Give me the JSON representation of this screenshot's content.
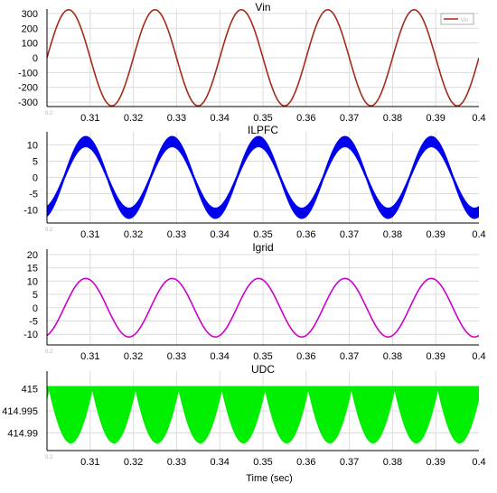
{
  "xlabel": "Time (sec)",
  "colors": {
    "vin": "#a52a1a",
    "ilpfc": "#0000ee",
    "igrid": "#cc00cc",
    "udc": "#00ee00",
    "grid": "#dcdcdc",
    "axis": "#000000",
    "watermark": "#a8c8ff"
  },
  "chart_data": [
    {
      "type": "line",
      "title": "Vin",
      "xlim": [
        0.3,
        0.4
      ],
      "ylim": [
        -330,
        330
      ],
      "xticks": [
        "0.31",
        "0.32",
        "0.33",
        "0.34",
        "0.35",
        "0.36",
        "0.37",
        "0.38",
        "0.39",
        "0.4"
      ],
      "xtick_values": [
        0.31,
        0.32,
        0.33,
        0.34,
        0.35,
        0.36,
        0.37,
        0.38,
        0.39,
        0.4
      ],
      "yticks": [
        "300",
        "200",
        "100",
        "0",
        "-100",
        "-200",
        "-300"
      ],
      "ytick_values": [
        300,
        200,
        100,
        0,
        -100,
        -200,
        -300
      ],
      "x_start_label": "0.2",
      "legend": "top-right",
      "series": [
        {
          "name": "Vin",
          "kind": "sine",
          "amplitude": 325,
          "frequency_hz": 50,
          "phase_rad": 0,
          "offset": 0,
          "band": 0
        }
      ]
    },
    {
      "type": "line",
      "title": "ILPFC",
      "xlim": [
        0.3,
        0.4
      ],
      "ylim": [
        -14,
        14
      ],
      "xticks": [
        "0.31",
        "0.32",
        "0.33",
        "0.34",
        "0.35",
        "0.36",
        "0.37",
        "0.38",
        "0.39",
        "0.4"
      ],
      "xtick_values": [
        0.31,
        0.32,
        0.33,
        0.34,
        0.35,
        0.36,
        0.37,
        0.38,
        0.39,
        0.4
      ],
      "yticks": [
        "10",
        "5",
        "0",
        "-5",
        "-10"
      ],
      "ytick_values": [
        10,
        5,
        0,
        -5,
        -10
      ],
      "x_start_label": "0.2",
      "series": [
        {
          "kind": "sine",
          "amplitude": 11,
          "frequency_hz": 50,
          "phase_rad": -1.25,
          "offset": 0,
          "band": 1.6
        }
      ]
    },
    {
      "type": "line",
      "title": "Igrid",
      "xlim": [
        0.3,
        0.4
      ],
      "ylim": [
        -14,
        22
      ],
      "xticks": [
        "0.31",
        "0.32",
        "0.33",
        "0.34",
        "0.35",
        "0.36",
        "0.37",
        "0.38",
        "0.39",
        "0.4"
      ],
      "xtick_values": [
        0.31,
        0.32,
        0.33,
        0.34,
        0.35,
        0.36,
        0.37,
        0.38,
        0.39,
        0.4
      ],
      "yticks": [
        "20",
        "15",
        "10",
        "5",
        "0",
        "-5",
        "-10"
      ],
      "ytick_values": [
        20,
        15,
        10,
        5,
        0,
        -5,
        -10
      ],
      "x_start_label": "0.2",
      "series": [
        {
          "kind": "sine",
          "amplitude": 11,
          "frequency_hz": 50,
          "phase_rad": -1.25,
          "offset": 0,
          "band": 0
        }
      ]
    },
    {
      "type": "area",
      "title": "UDC",
      "xlim": [
        0.3,
        0.4
      ],
      "ylim": [
        414.986,
        415.004
      ],
      "xticks": [
        "0.31",
        "0.32",
        "0.33",
        "0.34",
        "0.35",
        "0.36",
        "0.37",
        "0.38",
        "0.39",
        "0.4"
      ],
      "xtick_values": [
        0.31,
        0.32,
        0.33,
        0.34,
        0.35,
        0.36,
        0.37,
        0.38,
        0.39,
        0.4
      ],
      "yticks": [
        "415",
        "414.995",
        "414.99"
      ],
      "ytick_values": [
        415,
        414.995,
        414.99
      ],
      "x_start_label": "0.2",
      "series": [
        {
          "kind": "ripple",
          "top": 415.0,
          "bottom_min": 414.9877,
          "frequency_hz": 100,
          "min_phase_time": 0.3155
        }
      ]
    }
  ]
}
